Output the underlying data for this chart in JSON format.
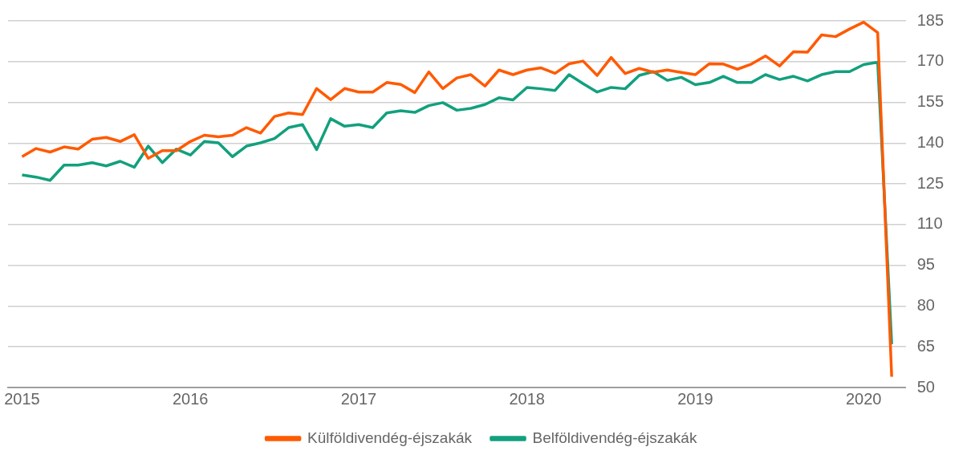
{
  "chart_data": {
    "type": "line",
    "x": [
      "2015-01",
      "2015-02",
      "2015-03",
      "2015-04",
      "2015-05",
      "2015-06",
      "2015-07",
      "2015-08",
      "2015-09",
      "2015-10",
      "2015-11",
      "2015-12",
      "2016-01",
      "2016-02",
      "2016-03",
      "2016-04",
      "2016-05",
      "2016-06",
      "2016-07",
      "2016-08",
      "2016-09",
      "2016-10",
      "2016-11",
      "2016-12",
      "2017-01",
      "2017-02",
      "2017-03",
      "2017-04",
      "2017-05",
      "2017-06",
      "2017-07",
      "2017-08",
      "2017-09",
      "2017-10",
      "2017-11",
      "2017-12",
      "2018-01",
      "2018-02",
      "2018-03",
      "2018-04",
      "2018-05",
      "2018-06",
      "2018-07",
      "2018-08",
      "2018-09",
      "2018-10",
      "2018-11",
      "2018-12",
      "2019-01",
      "2019-02",
      "2019-03",
      "2019-04",
      "2019-05",
      "2019-06",
      "2019-07",
      "2019-08",
      "2019-09",
      "2019-10",
      "2019-11",
      "2019-12",
      "2020-01",
      "2020-02",
      "2020-03"
    ],
    "series": [
      {
        "name": "Külföldivendég-éjszakák",
        "color": "#ff5a00",
        "values": [
          135,
          138,
          136.7,
          138.6,
          137.8,
          141.4,
          142.1,
          140.6,
          143.1,
          134.4,
          137.2,
          137.2,
          140.6,
          142.9,
          142.3,
          142.9,
          145.7,
          143.7,
          149.8,
          151.1,
          150.5,
          160.1,
          156,
          160.1,
          158.8,
          158.8,
          162.3,
          161.6,
          158.6,
          166.2,
          160.1,
          164,
          165.2,
          161,
          166.9,
          165.2,
          166.9,
          167.7,
          165.7,
          169.2,
          170.2,
          164.9,
          171.5,
          165.6,
          167.5,
          166.1,
          166.9,
          166,
          165.2,
          169.2,
          169.1,
          167.2,
          169.1,
          172.1,
          168.4,
          173.6,
          173.5,
          179.8,
          179.2,
          182,
          184.5,
          180.7,
          54
        ]
      },
      {
        "name": "Belföldivendég-éjszakák",
        "color": "#12a07e",
        "values": [
          128.3,
          127.5,
          126.3,
          131.9,
          131.9,
          132.8,
          131.6,
          133.3,
          131.1,
          138.9,
          132.8,
          137.8,
          135.6,
          140.6,
          140.1,
          135,
          138.9,
          140.1,
          141.7,
          145.7,
          146.8,
          137.6,
          149,
          146.2,
          146.8,
          145.7,
          151.1,
          151.9,
          151.3,
          153.8,
          154.9,
          152.1,
          152.8,
          154.2,
          156.7,
          155.9,
          160.5,
          160,
          159.4,
          165.2,
          161.9,
          158.8,
          160.5,
          160,
          164.9,
          166.3,
          163.1,
          164.2,
          161.5,
          162.3,
          164.6,
          162.3,
          162.3,
          165.2,
          163.4,
          164.6,
          162.9,
          165.2,
          166.3,
          166.3,
          168.9,
          169.8,
          66
        ]
      }
    ],
    "xlim": [
      "2014-12",
      "2020-04"
    ],
    "xticks": [
      "2015",
      "2016",
      "2017",
      "2018",
      "2019",
      "2020"
    ],
    "ylim": [
      50,
      185
    ],
    "yticks": [
      50,
      65,
      80,
      95,
      110,
      125,
      140,
      155,
      170,
      185
    ],
    "grid": "y",
    "legend": "bottom",
    "marker": "none",
    "line_style": "solid"
  }
}
